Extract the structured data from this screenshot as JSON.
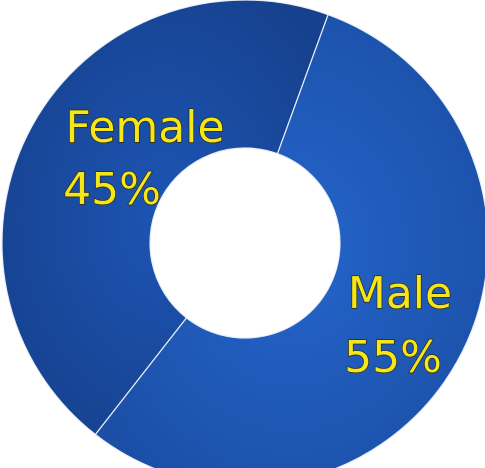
{
  "chart_data": {
    "type": "pie",
    "variant": "donut",
    "title": "",
    "categories": [
      "Female",
      "Male"
    ],
    "values": [
      45,
      55
    ],
    "value_labels": [
      "45%",
      "55%"
    ],
    "colors": {
      "Female": "#1a4fa8",
      "Male": "#1f5cc2",
      "label_text": "#f5e61a",
      "slice_border": "#e8eef8"
    },
    "legend": "none"
  }
}
